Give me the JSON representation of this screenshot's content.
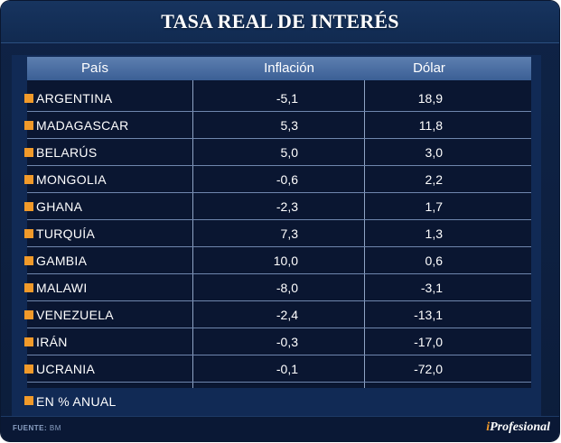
{
  "title": "TASA REAL DE INTERÉS",
  "columns": {
    "country": "País",
    "inflation": "Inflación",
    "usd": "Dólar"
  },
  "rows": [
    {
      "country": "ARGENTINA",
      "inflation": "-5,1",
      "usd": "18,9"
    },
    {
      "country": "MADAGASCAR",
      "inflation": "5,3",
      "usd": "11,8"
    },
    {
      "country": "BELARÚS",
      "inflation": "5,0",
      "usd": "3,0"
    },
    {
      "country": "MONGOLIA",
      "inflation": "-0,6",
      "usd": "2,2"
    },
    {
      "country": "GHANA",
      "inflation": "-2,3",
      "usd": "1,7"
    },
    {
      "country": "TURQUÍA",
      "inflation": "7,3",
      "usd": "1,3"
    },
    {
      "country": "GAMBIA",
      "inflation": "10,0",
      "usd": "0,6"
    },
    {
      "country": "MALAWI",
      "inflation": "-8,0",
      "usd": "-3,1"
    },
    {
      "country": "VENEZUELA",
      "inflation": "-2,4",
      "usd": "-13,1"
    },
    {
      "country": "IRÁN",
      "inflation": "-0,3",
      "usd": "-17,0"
    },
    {
      "country": "UCRANIA",
      "inflation": "-0,1",
      "usd": "-72,0"
    }
  ],
  "note": "EN % ANUAL",
  "source": {
    "label": "FUENTE:",
    "value": "BM"
  },
  "brand": {
    "prefix": "i",
    "name": "Profesional"
  },
  "colors": {
    "bullet": "#f19a2a",
    "background": "#0f2346",
    "header_row": "#4a6ea3"
  },
  "chart_data": {
    "type": "table",
    "title": "TASA REAL DE INTERÉS",
    "columns": [
      "País",
      "Inflación",
      "Dólar"
    ],
    "unit_note": "EN % ANUAL",
    "categories": [
      "ARGENTINA",
      "MADAGASCAR",
      "BELARÚS",
      "MONGOLIA",
      "GHANA",
      "TURQUÍA",
      "GAMBIA",
      "MALAWI",
      "VENEZUELA",
      "IRÁN",
      "UCRANIA"
    ],
    "series": [
      {
        "name": "Inflación",
        "values": [
          -5.1,
          5.3,
          5.0,
          -0.6,
          -2.3,
          7.3,
          10.0,
          -8.0,
          -2.4,
          -0.3,
          -0.1
        ]
      },
      {
        "name": "Dólar",
        "values": [
          18.9,
          11.8,
          3.0,
          2.2,
          1.7,
          1.3,
          0.6,
          -3.1,
          -13.1,
          -17.0,
          -72.0
        ]
      }
    ]
  }
}
